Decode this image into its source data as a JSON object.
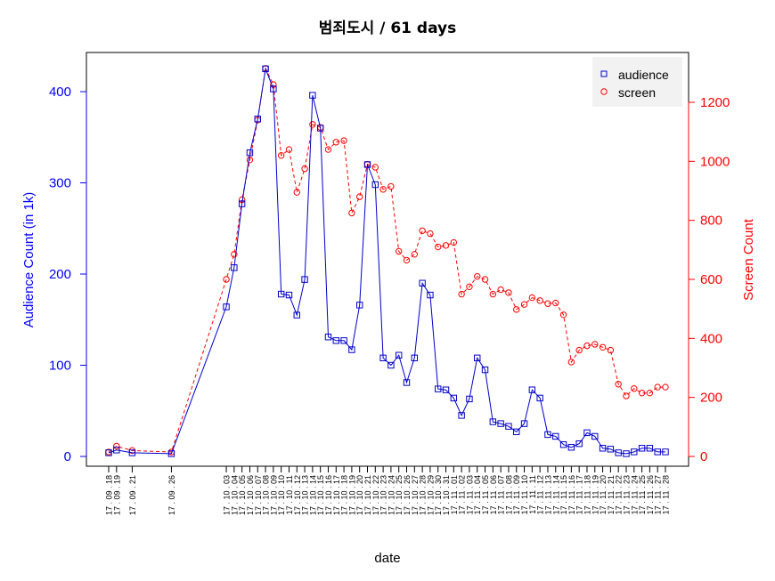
{
  "chart_data": {
    "type": "line",
    "title": "범죄도시 / 61 days",
    "xlabel": "date",
    "ylabel_left": "Audience Count (in 1k)",
    "ylabel_right": "Screen Count",
    "ylim_left": [
      0,
      400
    ],
    "yticks_left": [
      0,
      100,
      200,
      300,
      400
    ],
    "ylim_right": [
      0,
      1200
    ],
    "yticks_right": [
      0,
      200,
      400,
      600,
      800,
      1000,
      1200
    ],
    "legend_position": "top-right",
    "colors": {
      "audience": "#0000cc",
      "screen": "#ff0000",
      "left_axis": "#0000ff",
      "right_axis": "#ff0000"
    },
    "x_dates": [
      "2017-09-18",
      "2017-09-19",
      "2017-09-21",
      "2017-09-26",
      "2017-10-03",
      "2017-10-04",
      "2017-10-05",
      "2017-10-06",
      "2017-10-07",
      "2017-10-08",
      "2017-10-09",
      "2017-10-10",
      "2017-10-11",
      "2017-10-12",
      "2017-10-13",
      "2017-10-14",
      "2017-10-15",
      "2017-10-16",
      "2017-10-17",
      "2017-10-18",
      "2017-10-19",
      "2017-10-20",
      "2017-10-21",
      "2017-10-22",
      "2017-10-23",
      "2017-10-24",
      "2017-10-25",
      "2017-10-26",
      "2017-10-27",
      "2017-10-28",
      "2017-10-29",
      "2017-10-30",
      "2017-10-31",
      "2017-11-01",
      "2017-11-02",
      "2017-11-03",
      "2017-11-04",
      "2017-11-05",
      "2017-11-06",
      "2017-11-07",
      "2017-11-08",
      "2017-11-09",
      "2017-11-10",
      "2017-11-11",
      "2017-11-12",
      "2017-11-13",
      "2017-11-14",
      "2017-11-15",
      "2017-11-16",
      "2017-11-17",
      "2017-11-18",
      "2017-11-19",
      "2017-11-20",
      "2017-11-21",
      "2017-11-22",
      "2017-11-23",
      "2017-11-24",
      "2017-11-25",
      "2017-11-26",
      "2017-11-27",
      "2017-11-28"
    ],
    "x_tick_labels": [
      "17 . 09 . 18",
      "17 . 09 . 19",
      "17 . 09 . 21",
      "17 . 09 . 26",
      "17 . 10 . 03",
      "17 . 10 . 04",
      "17 . 10 . 05",
      "17 . 10 . 06",
      "17 . 10 . 07",
      "17 . 10 . 08",
      "17 . 10 . 09",
      "17 . 10 . 10",
      "17 . 10 . 11",
      "17 . 10 . 12",
      "17 . 10 . 13",
      "17 . 10 . 14",
      "17 . 10 . 15",
      "17 . 10 . 16",
      "17 . 10 . 17",
      "17 . 10 . 18",
      "17 . 10 . 19",
      "17 . 10 . 20",
      "17 . 10 . 21",
      "17 . 10 . 22",
      "17 . 10 . 23",
      "17 . 10 . 24",
      "17 . 10 . 25",
      "17 . 10 . 26",
      "17 . 10 . 27",
      "17 . 10 . 28",
      "17 . 10 . 29",
      "17 . 10 . 30",
      "17 . 10 . 31",
      "17 . 11 . 01",
      "17 . 11 . 02",
      "17 . 11 . 03",
      "17 . 11 . 04",
      "17 . 11 . 05",
      "17 . 11 . 06",
      "17 . 11 . 07",
      "17 . 11 . 08",
      "17 . 11 . 09",
      "17 . 11 . 10",
      "17 . 11 . 11",
      "17 . 11 . 12",
      "17 . 11 . 13",
      "17 . 11 . 14",
      "17 . 11 . 15",
      "17 . 11 . 16",
      "17 . 11 . 17",
      "17 . 11 . 18",
      "17 . 11 . 19",
      "17 . 11 . 20",
      "17 . 11 . 21",
      "17 . 11 . 22",
      "17 . 11 . 23",
      "17 . 11 . 24",
      "17 . 11 . 25",
      "17 . 11 . 26",
      "17 . 11 . 27",
      "17 . 11 . 28"
    ],
    "series": [
      {
        "name": "audience",
        "axis": "left",
        "values": [
          4,
          7,
          4,
          3,
          164,
          207,
          277,
          333,
          370,
          425,
          403,
          178,
          177,
          155,
          194,
          396,
          360,
          131,
          127,
          127,
          117,
          166,
          320,
          298,
          108,
          100,
          111,
          81,
          108,
          190,
          177,
          74,
          73,
          64,
          45,
          63,
          108,
          95,
          38,
          36,
          33,
          27,
          36,
          73,
          64,
          24,
          22,
          13,
          10,
          14,
          26,
          22,
          9,
          8,
          4,
          3,
          5,
          9,
          9,
          5,
          5
        ]
      },
      {
        "name": "screen",
        "axis": "right",
        "values": [
          15,
          35,
          20,
          15,
          600,
          685,
          870,
          1005,
          1140,
          1315,
          1260,
          1020,
          1040,
          895,
          975,
          1125,
          1115,
          1040,
          1065,
          1070,
          825,
          880,
          990,
          980,
          905,
          915,
          695,
          665,
          685,
          765,
          755,
          710,
          715,
          725,
          550,
          575,
          610,
          600,
          550,
          565,
          555,
          498,
          515,
          538,
          528,
          518,
          520,
          480,
          320,
          360,
          375,
          380,
          370,
          360,
          245,
          205,
          230,
          215,
          215,
          235,
          235
        ]
      }
    ]
  }
}
